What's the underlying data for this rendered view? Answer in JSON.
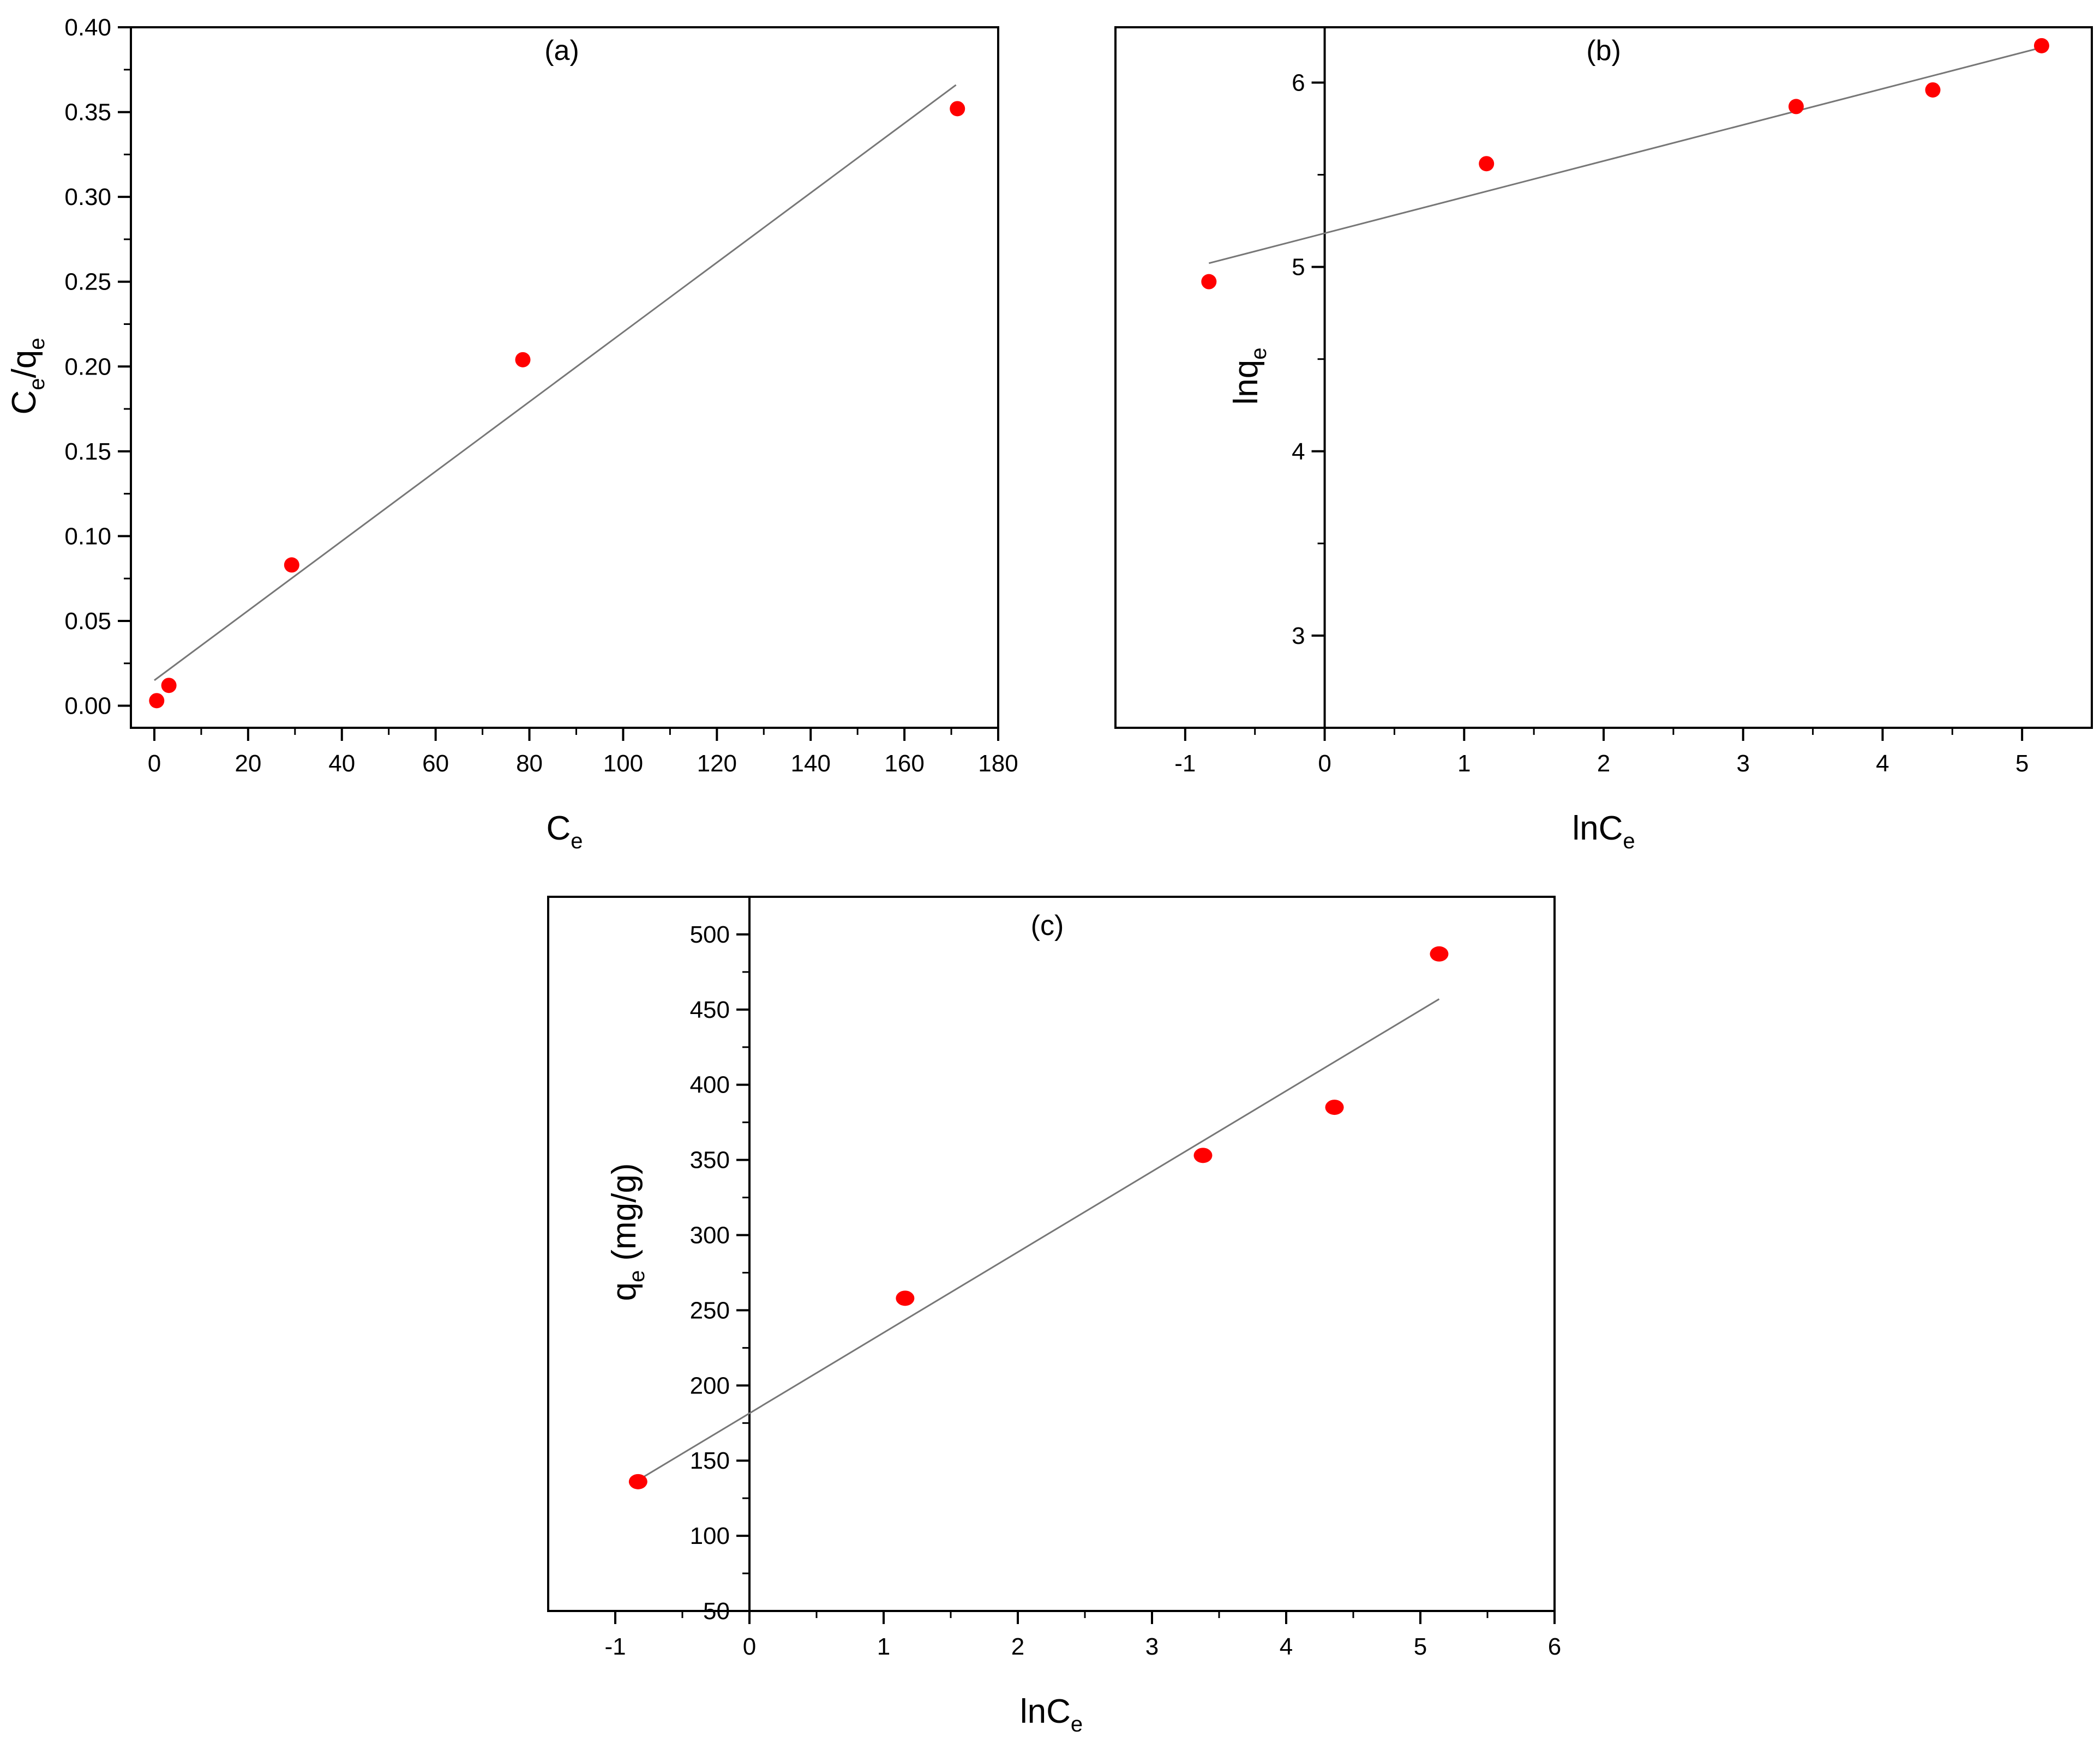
{
  "chart_data": [
    {
      "id": "a",
      "type": "scatter",
      "panel_label": "(a)",
      "xlabel": {
        "main": "C",
        "sub": "e"
      },
      "ylabel": {
        "parts": [
          {
            "t": "C"
          },
          {
            "t": "e",
            "sub": true
          },
          {
            "t": "/q"
          },
          {
            "t": "e",
            "sub": true
          }
        ]
      },
      "xlim": [
        -5,
        180
      ],
      "ylim": [
        -0.013,
        0.4
      ],
      "x_ticks": [
        0,
        20,
        40,
        60,
        80,
        100,
        120,
        140,
        160,
        180
      ],
      "x_tick_labels": [
        "0",
        "20",
        "40",
        "60",
        "80",
        "100",
        "120",
        "140",
        "160",
        "180"
      ],
      "y_ticks": [
        0.0,
        0.05,
        0.1,
        0.15,
        0.2,
        0.25,
        0.3,
        0.35,
        0.4
      ],
      "y_tick_labels": [
        "0.00",
        "0.05",
        "0.10",
        "0.15",
        "0.20",
        "0.25",
        "0.30",
        "0.35",
        "0.40"
      ],
      "origin_axes": false,
      "points": [
        {
          "x": 0.5,
          "y": 0.003
        },
        {
          "x": 3.1,
          "y": 0.012
        },
        {
          "x": 29.3,
          "y": 0.083
        },
        {
          "x": 78.6,
          "y": 0.204
        },
        {
          "x": 171.3,
          "y": 0.352
        }
      ],
      "fit_line": {
        "x": [
          0,
          171
        ],
        "y": [
          0.015,
          0.366
        ]
      },
      "marker_color": "#ff0000",
      "line_color": "#777777"
    },
    {
      "id": "b",
      "type": "scatter",
      "panel_label": "(b)",
      "xlabel": {
        "main": "lnC",
        "sub": "e"
      },
      "ylabel": {
        "parts": [
          {
            "t": "lnq"
          },
          {
            "t": "e",
            "sub": true
          }
        ]
      },
      "xlim": [
        -1.5,
        5.5
      ],
      "ylim": [
        2.5,
        6.3
      ],
      "x_ticks": [
        -1,
        0,
        1,
        2,
        3,
        4,
        5
      ],
      "x_tick_labels": [
        "-1",
        "0",
        "1",
        "2",
        "3",
        "4",
        "5"
      ],
      "y_ticks": [
        3,
        4,
        5,
        6
      ],
      "y_tick_labels": [
        "3",
        "4",
        "5",
        "6"
      ],
      "origin_axes": true,
      "points": [
        {
          "x": -0.83,
          "y": 4.92
        },
        {
          "x": 1.16,
          "y": 5.56
        },
        {
          "x": 3.38,
          "y": 5.87
        },
        {
          "x": 4.36,
          "y": 5.96
        },
        {
          "x": 5.14,
          "y": 6.2
        }
      ],
      "fit_line": {
        "x": [
          -0.83,
          5.14
        ],
        "y": [
          5.02,
          6.19
        ]
      },
      "marker_color": "#ff0000",
      "line_color": "#777777"
    },
    {
      "id": "c",
      "type": "scatter",
      "panel_label": "(c)",
      "xlabel": {
        "main": "lnC",
        "sub": "e"
      },
      "ylabel": {
        "parts": [
          {
            "t": "q"
          },
          {
            "t": "e",
            "sub": true
          },
          {
            "t": " (mg/g)"
          }
        ]
      },
      "xlim": [
        -1.5,
        6.0
      ],
      "ylim": [
        50,
        525
      ],
      "x_ticks": [
        -1,
        0,
        1,
        2,
        3,
        4,
        5,
        6
      ],
      "x_tick_labels": [
        "-1",
        "0",
        "1",
        "2",
        "3",
        "4",
        "5",
        "6"
      ],
      "y_ticks": [
        50,
        100,
        150,
        200,
        250,
        300,
        350,
        400,
        450,
        500
      ],
      "y_tick_labels": [
        "50",
        "100",
        "150",
        "200",
        "250",
        "300",
        "350",
        "400",
        "450",
        "500"
      ],
      "origin_axes": true,
      "points": [
        {
          "x": -0.83,
          "y": 136
        },
        {
          "x": 1.16,
          "y": 258
        },
        {
          "x": 3.38,
          "y": 353
        },
        {
          "x": 4.36,
          "y": 385
        },
        {
          "x": 5.14,
          "y": 487
        }
      ],
      "fit_line": {
        "x": [
          -0.83,
          5.14
        ],
        "y": [
          137,
          457
        ]
      },
      "marker_color": "#ff0000",
      "line_color": "#777777"
    }
  ]
}
